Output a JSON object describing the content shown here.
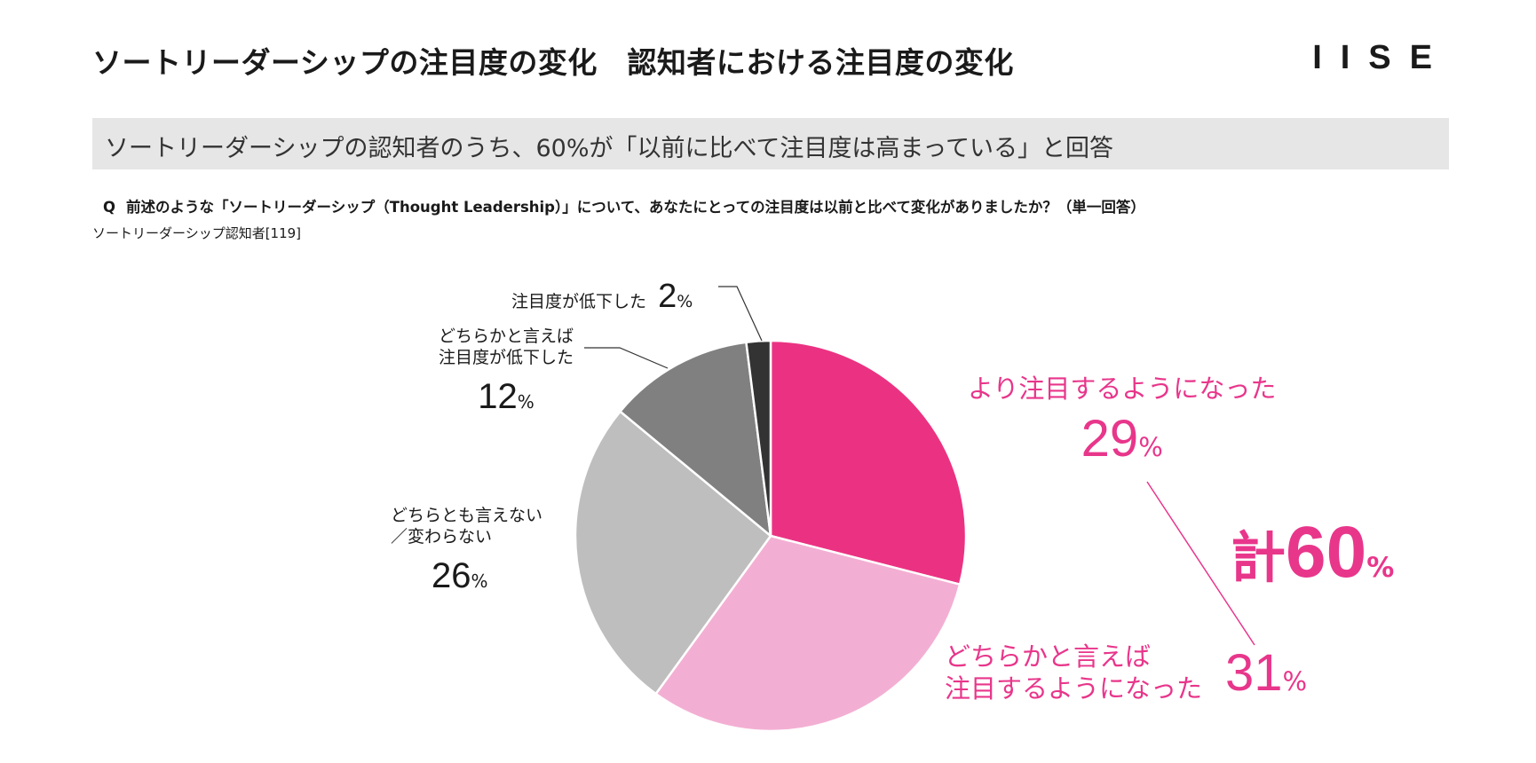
{
  "header": {
    "title": "ソートリーダーシップの注目度の変化　認知者における注目度の変化",
    "logo": "IISE"
  },
  "subtitle": "ソートリーダーシップの認知者のうち、60%が「以前に比べて注目度は高まっている」と回答",
  "question": {
    "prefix": "Q",
    "text": "前述のような「ソートリーダーシップ（Thought Leadership）」について、あなたにとっての注目度は以前と比べて変化がありましたか？（単一回答）"
  },
  "sample": "ソートリーダーシップ認知者[119]",
  "percent_sign": "%",
  "total": {
    "prefix": "計",
    "value": "60"
  },
  "colors": {
    "accent": "#e8368b"
  },
  "chart_data": {
    "type": "pie",
    "unit": "%",
    "slices": [
      {
        "label": "より注目するようになった",
        "value": 29,
        "color": "#eb3282"
      },
      {
        "label": "どちらかと言えば注目するようになった",
        "value": 31,
        "color": "#f3afd3"
      },
      {
        "label": "どちらとも言えない／変わらない",
        "value": 26,
        "color": "#bebebe"
      },
      {
        "label": "どちらかと言えば注目度が低下した",
        "value": 12,
        "color": "#808080"
      },
      {
        "label": "注目度が低下した",
        "value": 2,
        "color": "#333333"
      }
    ],
    "labels": {
      "s0": {
        "line1": "より注目するようになった",
        "value": "29"
      },
      "s1": {
        "line1": "どちらかと言えば",
        "line2": "注目するようになった",
        "value": "31"
      },
      "s2": {
        "line1": "どちらとも言えない",
        "line2": "／変わらない",
        "value": "26"
      },
      "s3": {
        "line1": "どちらかと言えば",
        "line2": "注目度が低下した",
        "value": "12"
      },
      "s4": {
        "line1": "注目度が低下した",
        "value": "2"
      }
    }
  }
}
